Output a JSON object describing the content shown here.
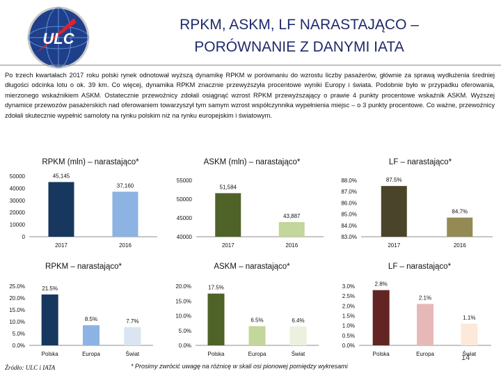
{
  "slide": {
    "title_line1": "RPKM, ASKM, LF NARASTAJĄCO –",
    "title_line2": "PORÓWNANIE Z DANYMI IATA",
    "body": "Po trzech kwartałach 2017 roku polski rynek odnotował wyższą dynamikę RPKM w porównaniu do wzrostu liczby pasażerów, głównie za sprawą wydłużenia średniej długości odcinka lotu o ok. 39 km. Co więcej, dynamika RPKM znacznie przewyższyła procentowe wyniki Europy i świata. Podobnie było w przypadku oferowania, mierzonego wskaźnikiem ASKM. Ostatecznie przewoźnicy zdołali osiągnąć wzrost RPKM przewyższający o prawie 4 punkty procentowe wskaźnik ASKM. Wyższej dynamice przewozów pasażerskich nad oferowaniem towarzyszył tym samym wzrost współczynnika wypełnienia miejsc – o 3 punkty procentowe. Co ważne, przewoźnicy zdołali skutecznie wypełnić samoloty na rynku polskim niż na rynku europejskim i światowym.",
    "source": "Źródło: ULC i IATA",
    "footnote": "* Prosimy zwrócić uwagę na różnicę w skali osi pionowej pomiędzy wykresami",
    "page_number": "14",
    "logo_text": "ULC",
    "logo_icon": "ulc-globe-logo-icon"
  },
  "chart_data": [
    {
      "type": "bar",
      "title": "RPKM (mln) – narastająco*",
      "categories": [
        "2017",
        "2016"
      ],
      "values": [
        45145,
        37160
      ],
      "value_labels": [
        "45,145",
        "37,160"
      ],
      "colors": [
        "#17375e",
        "#8db3e2"
      ],
      "ylim": [
        0,
        50000
      ],
      "yticks": [
        0,
        10000,
        20000,
        30000,
        40000,
        50000
      ],
      "ytick_labels": [
        "0",
        "10000",
        "20000",
        "30000",
        "40000",
        "50000"
      ]
    },
    {
      "type": "bar",
      "title": "ASKM (mln) – narastająco*",
      "categories": [
        "2017",
        "2016"
      ],
      "values": [
        51584,
        43887
      ],
      "value_labels": [
        "51,584",
        "43,887"
      ],
      "colors": [
        "#4f6228",
        "#c3d69b"
      ],
      "ylim": [
        40000,
        55000
      ],
      "yticks": [
        40000,
        45000,
        50000,
        55000
      ],
      "ytick_labels": [
        "40000",
        "45000",
        "50000",
        "55000"
      ]
    },
    {
      "type": "bar",
      "title": "LF – narastająco*",
      "categories": [
        "2017",
        "2016"
      ],
      "values": [
        87.5,
        84.7
      ],
      "value_labels": [
        "87.5%",
        "84.7%"
      ],
      "colors": [
        "#4a452a",
        "#948a54"
      ],
      "ylim": [
        83,
        88
      ],
      "yticks": [
        83,
        84,
        85,
        86,
        87,
        88
      ],
      "ytick_labels": [
        "83.0%",
        "84.0%",
        "85.0%",
        "86.0%",
        "87.0%",
        "88.0%"
      ]
    },
    {
      "type": "bar",
      "title": "RPKM – narastająco*",
      "categories": [
        "Polska",
        "Europa",
        "Świat"
      ],
      "values": [
        21.5,
        8.5,
        7.7
      ],
      "value_labels": [
        "21.5%",
        "8.5%",
        "7.7%"
      ],
      "colors": [
        "#17375e",
        "#8db3e2",
        "#dbe5f1"
      ],
      "ylim": [
        0,
        25
      ],
      "yticks": [
        0,
        5,
        10,
        15,
        20,
        25
      ],
      "ytick_labels": [
        "0.0%",
        "5.0%",
        "10.0%",
        "15.0%",
        "20.0%",
        "25.0%"
      ]
    },
    {
      "type": "bar",
      "title": "ASKM – narastająco*",
      "categories": [
        "Polska",
        "Europa",
        "Świat"
      ],
      "values": [
        17.5,
        6.5,
        6.4
      ],
      "value_labels": [
        "17.5%",
        "6.5%",
        "6.4%"
      ],
      "colors": [
        "#4f6228",
        "#c3d69b",
        "#ebf1de"
      ],
      "ylim": [
        0,
        20
      ],
      "yticks": [
        0,
        5,
        10,
        15,
        20
      ],
      "ytick_labels": [
        "0.0%",
        "5.0%",
        "10.0%",
        "15.0%",
        "20.0%"
      ]
    },
    {
      "type": "bar",
      "title": "LF – narastająco*",
      "categories": [
        "Polska",
        "Europa",
        "Świat"
      ],
      "values": [
        2.8,
        2.1,
        1.1
      ],
      "value_labels": [
        "2.8%",
        "2.1%",
        "1.1%"
      ],
      "colors": [
        "#632523",
        "#e6b9b8",
        "#fde9d9"
      ],
      "ylim": [
        0,
        3
      ],
      "yticks": [
        0,
        0.5,
        1,
        1.5,
        2,
        2.5,
        3
      ],
      "ytick_labels": [
        "0.0%",
        "0.5%",
        "1.0%",
        "1.5%",
        "2.0%",
        "2.5%",
        "3.0%"
      ]
    }
  ]
}
